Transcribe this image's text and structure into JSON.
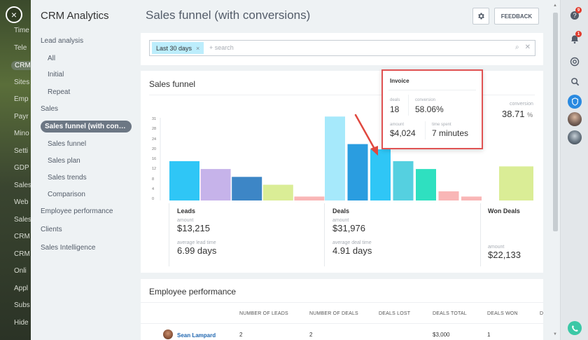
{
  "background_app": {
    "items": [
      "Time",
      "Tele",
      "CRM",
      "Sites",
      "Emp",
      "Payr",
      "Mino",
      "Setti",
      "GDP",
      "Sales",
      "Web",
      "Sales",
      "CRM",
      "CRM",
      "Onli",
      "Appl",
      "Subs",
      "Hide"
    ],
    "active_index": 2,
    "close_label": "×"
  },
  "sidebar": {
    "title": "CRM Analytics",
    "items": [
      {
        "label": "Lead analysis",
        "level": "top"
      },
      {
        "label": "All",
        "level": "sub"
      },
      {
        "label": "Initial",
        "level": "sub"
      },
      {
        "label": "Repeat",
        "level": "sub"
      },
      {
        "label": "Sales",
        "level": "top"
      },
      {
        "label": "Sales funnel (with conve...",
        "level": "selected"
      },
      {
        "label": "Sales funnel",
        "level": "sub"
      },
      {
        "label": "Sales plan",
        "level": "sub"
      },
      {
        "label": "Sales trends",
        "level": "sub"
      },
      {
        "label": "Comparison",
        "level": "sub"
      },
      {
        "label": "Employee performance",
        "level": "top"
      },
      {
        "label": "Clients",
        "level": "top"
      },
      {
        "label": "Sales Intelligence",
        "level": "top"
      }
    ]
  },
  "header": {
    "title": "Sales funnel (with conversions)",
    "gear_icon": "gear-icon",
    "feedback_label": "FEEDBACK"
  },
  "filter": {
    "tag": "Last 30 days",
    "tag_remove": "×",
    "placeholder": "+ search",
    "search_icon": "⌕",
    "clear_icon": "✕"
  },
  "funnel": {
    "title": "Sales funnel",
    "conversion_label": "conversion",
    "conversion_value": "38.71",
    "conversion_unit": "%",
    "leads": {
      "title": "Leads",
      "amount_label": "amount",
      "amount": "$13,215",
      "time_label": "average lead time",
      "time": "6.99 days"
    },
    "deals": {
      "title": "Deals",
      "amount_label": "amount",
      "amount": "$31,976",
      "time_label": "average deal time",
      "time": "4.91 days"
    },
    "won": {
      "title": "Won Deals",
      "amount_label": "amount",
      "amount": "$22,133"
    }
  },
  "chart_data": {
    "type": "bar",
    "yticks": [
      "31",
      "28",
      "24",
      "20",
      "16",
      "12",
      "8",
      "4",
      "0"
    ],
    "ylim": [
      0,
      31
    ],
    "groups": [
      {
        "name": "Leads",
        "values": [
          15,
          12,
          9,
          6,
          1.5
        ],
        "colors": [
          "#2fc6f6",
          "#c6b3ea",
          "#3d86c6",
          "#daed96",
          "#f9b6b6"
        ]
      },
      {
        "name": "Deals",
        "values": [
          32,
          21.5,
          19.5,
          15,
          12,
          3.5,
          1.5
        ],
        "colors": [
          "#a6e9fb",
          "#2a9de0",
          "#2fc6f6",
          "#55d0e0",
          "#2fe0c0",
          "#f9b6b6",
          "#f9b6b6"
        ]
      },
      {
        "name": "Won Deals",
        "values": [
          13
        ],
        "colors": [
          "#daed96"
        ]
      }
    ]
  },
  "tooltip": {
    "title": "Invoice",
    "deals_label": "deals",
    "deals": "18",
    "conversion_label": "conversion",
    "conversion": "58.06%",
    "amount_label": "amount",
    "amount": "$4,024",
    "time_label": "time spent",
    "time": "7 minutes"
  },
  "employee": {
    "title": "Employee performance",
    "columns": [
      "NUMBER OF LEADS",
      "NUMBER OF DEALS",
      "DEALS LOST",
      "DEALS TOTAL",
      "DEALS WON",
      "D"
    ],
    "rows": [
      {
        "name": "Sean Lampard",
        "leads": "2",
        "deals": "2",
        "lost": "",
        "total": "$3,000",
        "won": "1"
      }
    ]
  },
  "right_bar": {
    "help_badge": "9",
    "bell_badge": "1"
  }
}
